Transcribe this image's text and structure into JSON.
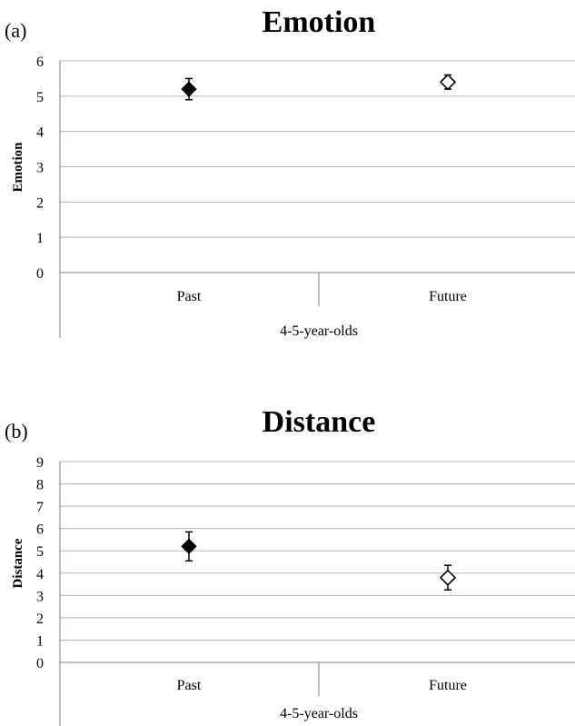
{
  "chart_data": [
    {
      "panel_label": "(a)",
      "type": "scatter",
      "title": "Emotion",
      "ylabel": "Emotion",
      "ylim": [
        0,
        6
      ],
      "yticks": [
        0,
        1,
        2,
        3,
        4,
        5,
        6
      ],
      "grid": true,
      "categories": [
        "Past",
        "Future"
      ],
      "group_label": "4-5-year-olds",
      "points": [
        {
          "category": "Past",
          "value": 5.2,
          "error": 0.3,
          "marker": "filled-diamond"
        },
        {
          "category": "Future",
          "value": 5.4,
          "error": 0.2,
          "marker": "open-diamond"
        }
      ]
    },
    {
      "panel_label": "(b)",
      "type": "scatter",
      "title": "Distance",
      "ylabel": "Distance",
      "ylim": [
        0,
        9
      ],
      "yticks": [
        0,
        1,
        2,
        3,
        4,
        5,
        6,
        7,
        8,
        9
      ],
      "grid": true,
      "categories": [
        "Past",
        "Future"
      ],
      "group_label": "4-5-year-olds",
      "points": [
        {
          "category": "Past",
          "value": 5.2,
          "error": 0.65,
          "marker": "filled-diamond"
        },
        {
          "category": "Future",
          "value": 3.8,
          "error": 0.55,
          "marker": "open-diamond"
        }
      ]
    }
  ]
}
